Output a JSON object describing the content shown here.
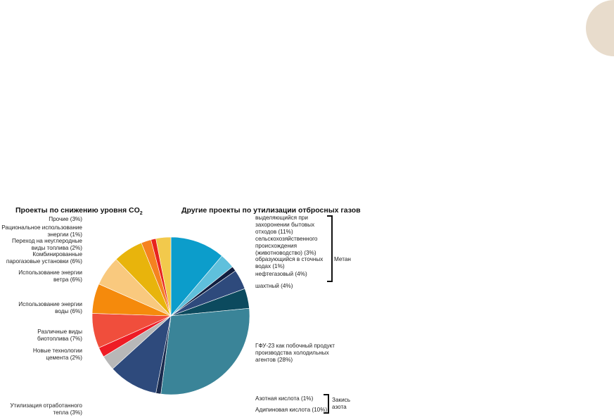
{
  "chart_data": {
    "type": "pie",
    "left_title": "Проекты по снижению уровня CO",
    "left_title_sub": "2",
    "right_title": "Другие проекты по утилизации отбросных газов",
    "slices": [
      {
        "label": "Прочие (3%)",
        "value": 3,
        "color": "#f2c94c"
      },
      {
        "label": "Рациональное использование энергии (1%)",
        "value": 1,
        "color": "#e8241e"
      },
      {
        "label": "Переход на неуглеродные виды топлива (2%)",
        "value": 2,
        "color": "#f58220"
      },
      {
        "label": "Комбинированные парогазовые установки (6%)",
        "value": 6,
        "color": "#e8b40c"
      },
      {
        "label": "Использование энергии ветра (6%)",
        "value": 6,
        "color": "#f9c97e"
      },
      {
        "label": "Использование энергии воды (6%)",
        "value": 6,
        "color": "#f58a0c"
      },
      {
        "label": "Различные виды биотоплива (7%)",
        "value": 7,
        "color": "#f04e3c"
      },
      {
        "label": "Новые технологии цемента (2%)",
        "value": 2,
        "color": "#ee1c25"
      },
      {
        "label": "Утилизация отработанного тепла (3%)",
        "value": 3,
        "color": "#b8b8b8"
      },
      {
        "label": "Адипиновая кислота (10%)",
        "value": 10,
        "color": "#2e4a7c"
      },
      {
        "label": "Азотная кислота (1%)",
        "value": 1,
        "color": "#1a2b4e"
      },
      {
        "label": "ГФУ-23 как побочный продукт производства холодильных агентов (28%)",
        "value": 28,
        "color": "#3a8498"
      },
      {
        "label": "шахтный (4%)",
        "value": 4,
        "color": "#0c4a5e"
      },
      {
        "label": "нефтегазовый (4%)",
        "value": 4,
        "color": "#2e4a7c"
      },
      {
        "label": "образующийся в сточных водах (1%)",
        "value": 1,
        "color": "#111d3e"
      },
      {
        "label": "сельскохозяйственного происхождения (животноводство) (3%)",
        "value": 3,
        "color": "#5fc0dc"
      },
      {
        "label": "выделяющийся при захоронении бытовых отходов (11%)",
        "value": 11,
        "color": "#0c9dcb"
      }
    ],
    "left_labels": [
      [
        "Прочие (3%)"
      ],
      [
        "Рациональное использование",
        "энергии (1%)"
      ],
      [
        "Переход на неуглеродные",
        "виды топлива (2%)"
      ],
      [
        "Комбинированные",
        "парогазовые установки (6%)"
      ],
      [
        "Использование энергии",
        "ветра (6%)"
      ],
      [
        "Использование энергии",
        "воды (6%)"
      ],
      [
        "Различные виды",
        "биотоплива (7%)"
      ],
      [
        "Новые технологии",
        "цемента (2%)"
      ],
      [
        "Утилизация отработанного",
        "тепла (3%)"
      ]
    ],
    "right_labels": [
      [
        "выделяющийся при",
        "захоронении бытовых",
        "отходов (11%)"
      ],
      [
        "сельскохозяйственного",
        "происхождения",
        "(животноводство) (3%)"
      ],
      [
        "образующийся в сточных",
        "водах (1%)"
      ],
      [
        "нефтегазовый (4%)"
      ],
      [
        "шахтный (4%)"
      ],
      [
        "ГФУ-23 как побочный продукт",
        "производства холодильных",
        "агентов (28%)"
      ],
      [
        "Азотная кислота (1%)"
      ],
      [
        "Адипиновая кислота (10%)"
      ]
    ],
    "group_labels": {
      "methane": "Метан",
      "nitrous": [
        "Закись",
        "азота"
      ]
    }
  }
}
